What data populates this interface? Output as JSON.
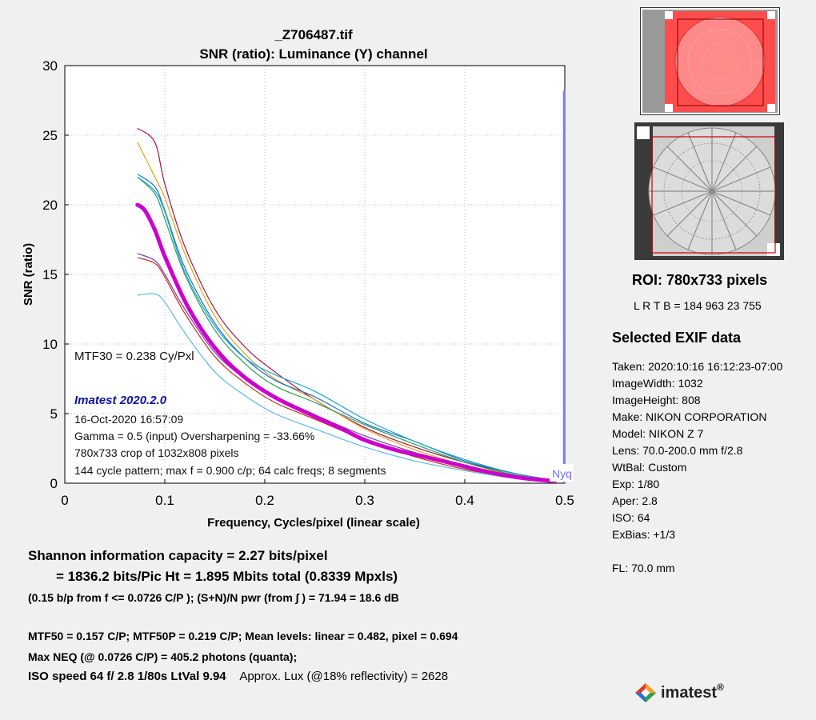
{
  "chart_data": {
    "type": "line",
    "title": "_Z706487.tif",
    "subtitle": "SNR (ratio):  Luminance (Y) channel",
    "xlabel": "Frequency, Cycles/pixel (linear scale)",
    "ylabel": "SNR (ratio)",
    "xlim": [
      0,
      0.5
    ],
    "ylim": [
      0,
      30
    ],
    "xticks": [
      "0",
      "0.1",
      "0.2",
      "0.3",
      "0.4",
      "0.5"
    ],
    "yticks": [
      "0",
      "5",
      "10",
      "15",
      "20",
      "25",
      "30"
    ],
    "grid": true,
    "nyquist_label": "Nyq",
    "nyquist_x": 0.5,
    "mean_series": {
      "color": "#cc00cc",
      "x": [
        0.0726,
        0.08,
        0.09,
        0.1,
        0.12,
        0.14,
        0.16,
        0.18,
        0.2,
        0.22,
        0.25,
        0.28,
        0.3,
        0.33,
        0.36,
        0.4,
        0.43,
        0.46,
        0.49
      ],
      "y": [
        20.0,
        19.6,
        18.2,
        16.3,
        13.1,
        10.7,
        8.9,
        7.6,
        6.6,
        5.8,
        4.8,
        3.8,
        3.1,
        2.4,
        1.9,
        1.2,
        0.7,
        0.35,
        0.15
      ]
    },
    "series": [
      {
        "color": "#a0163c",
        "x": [
          0.0726,
          0.09,
          0.1,
          0.12,
          0.15,
          0.18,
          0.21,
          0.25,
          0.3,
          0.35,
          0.4,
          0.45,
          0.49
        ],
        "y": [
          25.5,
          24.5,
          21.5,
          17.0,
          12.5,
          9.8,
          8.0,
          6.0,
          4.0,
          2.6,
          1.5,
          0.7,
          0.2
        ]
      },
      {
        "color": "#e8a020",
        "x": [
          0.0726,
          0.09,
          0.1,
          0.12,
          0.15,
          0.18,
          0.21,
          0.25,
          0.3,
          0.35,
          0.4,
          0.45,
          0.49
        ],
        "y": [
          24.5,
          22.0,
          20.5,
          16.5,
          12.0,
          9.3,
          7.5,
          6.0,
          3.9,
          2.4,
          1.3,
          0.6,
          0.2
        ]
      },
      {
        "color": "#1f6fd0",
        "x": [
          0.0726,
          0.09,
          0.1,
          0.12,
          0.15,
          0.18,
          0.21,
          0.25,
          0.3,
          0.35,
          0.4,
          0.45,
          0.49
        ],
        "y": [
          22.2,
          21.3,
          19.6,
          15.5,
          11.5,
          9.0,
          7.4,
          6.2,
          4.3,
          3.0,
          1.6,
          0.7,
          0.2
        ]
      },
      {
        "color": "#2a9d5a",
        "x": [
          0.0726,
          0.09,
          0.1,
          0.12,
          0.15,
          0.18,
          0.21,
          0.25,
          0.3,
          0.35,
          0.4,
          0.45,
          0.49
        ],
        "y": [
          22.0,
          20.8,
          19.0,
          15.0,
          11.0,
          8.6,
          7.0,
          5.8,
          4.2,
          2.8,
          1.5,
          0.6,
          0.2
        ]
      },
      {
        "color": "#17a6c8",
        "x": [
          0.0726,
          0.09,
          0.1,
          0.12,
          0.15,
          0.18,
          0.21,
          0.25,
          0.3,
          0.35,
          0.4,
          0.45,
          0.49
        ],
        "y": [
          22.0,
          21.0,
          19.5,
          15.2,
          11.3,
          9.0,
          7.8,
          6.6,
          4.6,
          3.0,
          1.7,
          0.7,
          0.2
        ]
      },
      {
        "color": "#7a3fb0",
        "x": [
          0.0726,
          0.09,
          0.1,
          0.12,
          0.15,
          0.18,
          0.21,
          0.25,
          0.3,
          0.35,
          0.4,
          0.45,
          0.49
        ],
        "y": [
          16.5,
          16.0,
          15.0,
          12.5,
          9.4,
          7.5,
          6.1,
          4.9,
          3.4,
          2.2,
          1.2,
          0.5,
          0.15
        ]
      },
      {
        "color": "#c03020",
        "x": [
          0.0726,
          0.09,
          0.1,
          0.12,
          0.15,
          0.18,
          0.21,
          0.25,
          0.3,
          0.35,
          0.4,
          0.45,
          0.49
        ],
        "y": [
          16.2,
          15.8,
          14.8,
          12.2,
          9.1,
          7.2,
          5.8,
          4.6,
          3.1,
          1.9,
          1.0,
          0.4,
          0.1
        ]
      },
      {
        "color": "#5bb8e8",
        "x": [
          0.0726,
          0.09,
          0.1,
          0.12,
          0.15,
          0.18,
          0.21,
          0.25,
          0.3,
          0.35,
          0.4,
          0.45,
          0.49
        ],
        "y": [
          13.5,
          13.6,
          13.0,
          10.8,
          8.0,
          6.3,
          5.0,
          3.9,
          2.6,
          1.6,
          0.9,
          0.35,
          0.1
        ]
      }
    ],
    "annotations": {
      "mtf30": "MTF30 = 0.238 Cy/Pxl",
      "version": "Imatest 2020.2.0",
      "date": "16-Oct-2020 16:57:09",
      "gamma": "Gamma = 0.5 (input)  Oversharpening = -33.66%",
      "crop": "780x733 crop of 1032x808 pixels",
      "pattern": "144 cycle pattern;  max f = 0.900 c/p;  64 calc freqs;  8 segments"
    }
  },
  "roi": {
    "title": "ROI:  780x733 pixels",
    "bounds": "L R  T B = 184 963  23 755"
  },
  "exif": {
    "heading": "Selected EXIF data",
    "lines": [
      "Taken: 2020:10:16 16:12:23-07:00",
      "ImageWidth:  1032",
      "ImageHeight:  808",
      "Make:  NIKON CORPORATION",
      "Model: NIKON Z 7",
      "Lens:  70.0-200.0 mm f/2.8",
      "WtBal:  Custom",
      "Exp:   1/80",
      "Aper:  2.8",
      "ISO:   64",
      "ExBias:  +1/3"
    ],
    "fl": "FL:  70.0 mm"
  },
  "stats": {
    "shannon": "Shannon information capacity  =  2.27 bits/pixel",
    "bits": "=  1836.2 bits/Pic Ht =  1.895 Mbits total (0.8339 Mpxls)",
    "from_f": "(0.15 b/p from f <= 0.0726 C/P );   (S+N)/N pwr (from ∫ ) = 71.94 = 18.6 dB",
    "mtf50": "MTF50 = 0.157 C/P;  MTF50P = 0.219 C/P;    Mean levels:  linear = 0.482,  pixel = 0.694",
    "neq": "Max NEQ (@ 0.0726 C/P) = 405.2 photons (quanta);",
    "iso_bold": "ISO speed  64   f/ 2.8    1/80s    LtVal 9.94",
    "lux": "Approx. Lux (@18% reflectivity) = 2628"
  },
  "brand": {
    "name": "imatest",
    "mark": "®"
  }
}
